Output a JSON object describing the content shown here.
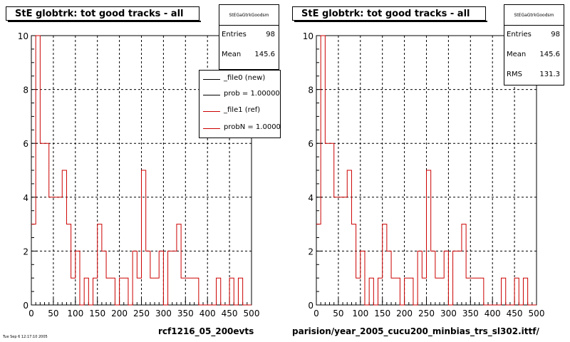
{
  "window": {
    "background": "#ffffff"
  },
  "colors": {
    "histogram_ref": "#cc0000",
    "histogram_new": "#000000",
    "grid": "#000000"
  },
  "panels": [
    {
      "title": "StE globtrk: tot good tracks - all",
      "stats": {
        "name": "StEGaGtrkGoodsm",
        "entries_label": "Entries",
        "entries": "98",
        "mean_label": "Mean",
        "mean": "145.6",
        "rms_label": "",
        "rms": ""
      },
      "footer": "rcf1216_05_200evts",
      "tiny_label": "Tue Sep 6 12:17:10 2005"
    },
    {
      "title": "StE globtrk: tot good tracks - all",
      "stats": {
        "name": "StEGaGtrkGoodsm",
        "entries_label": "Entries",
        "entries": "98",
        "mean_label": "Mean",
        "mean": "145.6",
        "rms_label": "RMS",
        "rms": "131.3"
      },
      "footer": "parision/year_2005_cucu200_minbias_trs_sl302.ittf/",
      "tiny_label": ""
    }
  ],
  "legend": {
    "entries": [
      {
        "label": "_file0 (new)",
        "color": "#000000"
      },
      {
        "label": "prob = 1.000000",
        "color": "#000000"
      },
      {
        "label": "_file1 (ref)",
        "color": "#cc0000"
      },
      {
        "label": "probN = 1.000000",
        "color": "#cc0000"
      }
    ]
  },
  "chart_data": [
    {
      "type": "histogram",
      "title": "StE globtrk: tot good tracks - all",
      "xlim": [
        0,
        500
      ],
      "ylim": [
        0,
        10
      ],
      "xticks": [
        0,
        50,
        100,
        150,
        200,
        250,
        300,
        350,
        400,
        450,
        500
      ],
      "yticks": [
        0,
        2,
        4,
        6,
        8,
        10
      ],
      "grid": true,
      "bin_width": 10,
      "bins_lower_edge": [
        0,
        10,
        20,
        30,
        40,
        50,
        60,
        70,
        80,
        90,
        100,
        110,
        120,
        130,
        140,
        150,
        160,
        170,
        180,
        190,
        200,
        210,
        220,
        230,
        240,
        250,
        260,
        270,
        280,
        290,
        300,
        310,
        320,
        330,
        340,
        350,
        360,
        370,
        380,
        390,
        400,
        410,
        420,
        430,
        440,
        450,
        460,
        470,
        480,
        490
      ],
      "series": [
        {
          "name": "_file1 (ref)",
          "values": [
            3,
            10,
            6,
            6,
            4,
            4,
            4,
            5,
            3,
            1,
            2,
            0,
            1,
            0,
            1,
            3,
            2,
            1,
            1,
            0,
            1,
            1,
            0,
            2,
            1,
            5,
            2,
            1,
            1,
            2,
            0,
            2,
            2,
            3,
            1,
            1,
            1,
            1,
            0,
            0,
            0,
            0,
            1,
            0,
            0,
            1,
            0,
            1,
            0,
            0
          ]
        }
      ]
    },
    {
      "type": "histogram",
      "title": "StE globtrk: tot good tracks - all",
      "xlim": [
        0,
        500
      ],
      "ylim": [
        0,
        10
      ],
      "xticks": [
        0,
        50,
        100,
        150,
        200,
        250,
        300,
        350,
        400,
        450,
        500
      ],
      "yticks": [
        0,
        2,
        4,
        6,
        8,
        10
      ],
      "grid": true,
      "bin_width": 10,
      "bins_lower_edge": [
        0,
        10,
        20,
        30,
        40,
        50,
        60,
        70,
        80,
        90,
        100,
        110,
        120,
        130,
        140,
        150,
        160,
        170,
        180,
        190,
        200,
        210,
        220,
        230,
        240,
        250,
        260,
        270,
        280,
        290,
        300,
        310,
        320,
        330,
        340,
        350,
        360,
        370,
        380,
        390,
        400,
        410,
        420,
        430,
        440,
        450,
        460,
        470,
        480,
        490
      ],
      "series": [
        {
          "name": "_file1 (ref)",
          "values": [
            3,
            10,
            6,
            6,
            4,
            4,
            4,
            5,
            3,
            1,
            2,
            0,
            1,
            0,
            1,
            3,
            2,
            1,
            1,
            0,
            1,
            1,
            0,
            2,
            1,
            5,
            2,
            1,
            1,
            2,
            0,
            2,
            2,
            3,
            1,
            1,
            1,
            1,
            0,
            0,
            0,
            0,
            1,
            0,
            0,
            1,
            0,
            1,
            0,
            0
          ]
        }
      ]
    }
  ]
}
